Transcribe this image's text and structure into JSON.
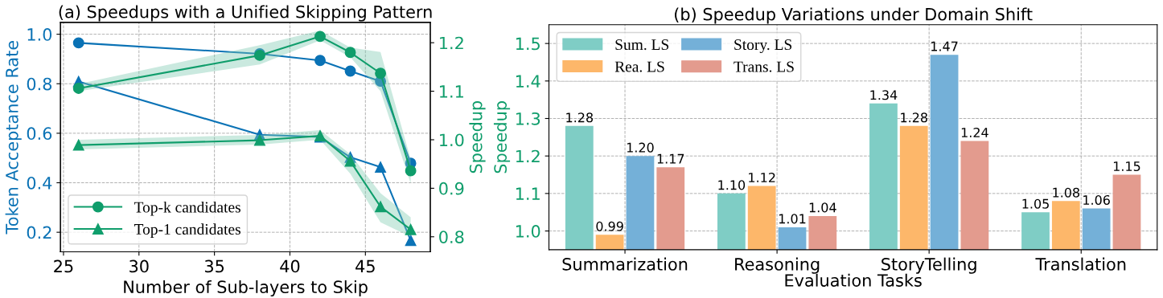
{
  "chart_data": [
    {
      "type": "line",
      "title": "(a) Speedups with a Unified Skipping Pattern",
      "xlabel": "Number of Sub-layers to Skip",
      "ylabel": "Token Acceptance Rate",
      "y2label": "Speedup",
      "x": [
        26,
        38,
        42,
        44,
        46,
        48
      ],
      "series": [
        {
          "color": "#0a72b5",
          "marker": "circle",
          "axis": "y",
          "values": [
            0.965,
            0.921,
            0.894,
            0.851,
            0.81,
            0.479
          ]
        },
        {
          "color": "#0b73b6",
          "marker": "triangle",
          "axis": "y",
          "values": [
            0.809,
            0.594,
            0.585,
            0.503,
            0.463,
            0.167
          ]
        },
        {
          "name": "Top-k candidates",
          "color": "#0f9d6b",
          "marker": "circle",
          "axis": "y2",
          "values": [
            1.106,
            1.174,
            1.213,
            1.18,
            1.137,
            0.936
          ],
          "lower": [
            1.1,
            1.155,
            1.205,
            1.17,
            1.1,
            0.91
          ],
          "upper": [
            1.115,
            1.195,
            1.225,
            1.19,
            1.181,
            0.96
          ]
        },
        {
          "name": "Top-1 candidates",
          "color": "#109e6c",
          "marker": "triangle",
          "axis": "y2",
          "values": [
            0.989,
            0.999,
            1.008,
            0.956,
            0.862,
            0.815
          ],
          "lower": [
            0.98,
            0.99,
            1.0,
            0.93,
            0.83,
            0.8
          ],
          "upper": [
            1.0,
            1.01,
            1.02,
            0.97,
            0.89,
            0.84
          ]
        }
      ],
      "xlim": [
        24.8,
        49.3
      ],
      "xticks": [
        25,
        30,
        35,
        40,
        45
      ],
      "ylim": [
        0.121,
        1.048
      ],
      "yticks": [
        {
          "value": 0.2,
          "label": "0.2"
        },
        {
          "value": 0.4,
          "label": "0.4"
        },
        {
          "value": 0.6,
          "label": "0.6"
        },
        {
          "value": 0.8,
          "label": "0.8"
        },
        {
          "value": 1.0,
          "label": "1.0"
        }
      ],
      "y2lim": [
        0.769,
        1.242
      ],
      "y2ticks": [
        {
          "value": 0.8,
          "label": "0.8"
        },
        {
          "value": 0.9,
          "label": "0.9"
        },
        {
          "value": 1.0,
          "label": "1.0"
        },
        {
          "value": 1.1,
          "label": "1.1"
        },
        {
          "value": 1.2,
          "label": "1.2"
        }
      ],
      "grid": true,
      "legend": "lower left"
    },
    {
      "type": "bar",
      "title": "(b) Speedup Variations under Domain Shift",
      "xlabel": "Evaluation Tasks",
      "ylabel": "Speedup",
      "categories": [
        "Summarization",
        "Reasoning",
        "StoryTelling",
        "Translation"
      ],
      "series": [
        {
          "name": "Sum. LS",
          "color": "#7fcdc5",
          "values": [
            1.28,
            1.1,
            1.34,
            1.05
          ],
          "value_labels": [
            "1.28",
            "1.10",
            "1.34",
            "1.05"
          ]
        },
        {
          "name": "Rea. LS",
          "color": "#fdb76a",
          "values": [
            0.99,
            1.12,
            1.28,
            1.08
          ],
          "value_labels": [
            "0.99",
            "1.12",
            "1.28",
            "1.08"
          ]
        },
        {
          "name": "Story. LS",
          "color": "#74b0d8",
          "values": [
            1.2,
            1.01,
            1.47,
            1.06
          ],
          "value_labels": [
            "1.20",
            "1.01",
            "1.47",
            "1.06"
          ]
        },
        {
          "name": "Trans. LS",
          "color": "#e39b8e",
          "values": [
            1.17,
            1.04,
            1.24,
            1.15
          ],
          "value_labels": [
            "1.17",
            "1.04",
            "1.24",
            "1.15"
          ]
        }
      ],
      "ylim": [
        0.95,
        1.55
      ],
      "yticks": [
        {
          "value": 1.0,
          "label": "1.0"
        },
        {
          "value": 1.1,
          "label": "1.1"
        },
        {
          "value": 1.2,
          "label": "1.2"
        },
        {
          "value": 1.3,
          "label": "1.3"
        },
        {
          "value": 1.4,
          "label": "1.4"
        },
        {
          "value": 1.5,
          "label": "1.5"
        }
      ],
      "grid": true,
      "legend": "upper left"
    }
  ]
}
